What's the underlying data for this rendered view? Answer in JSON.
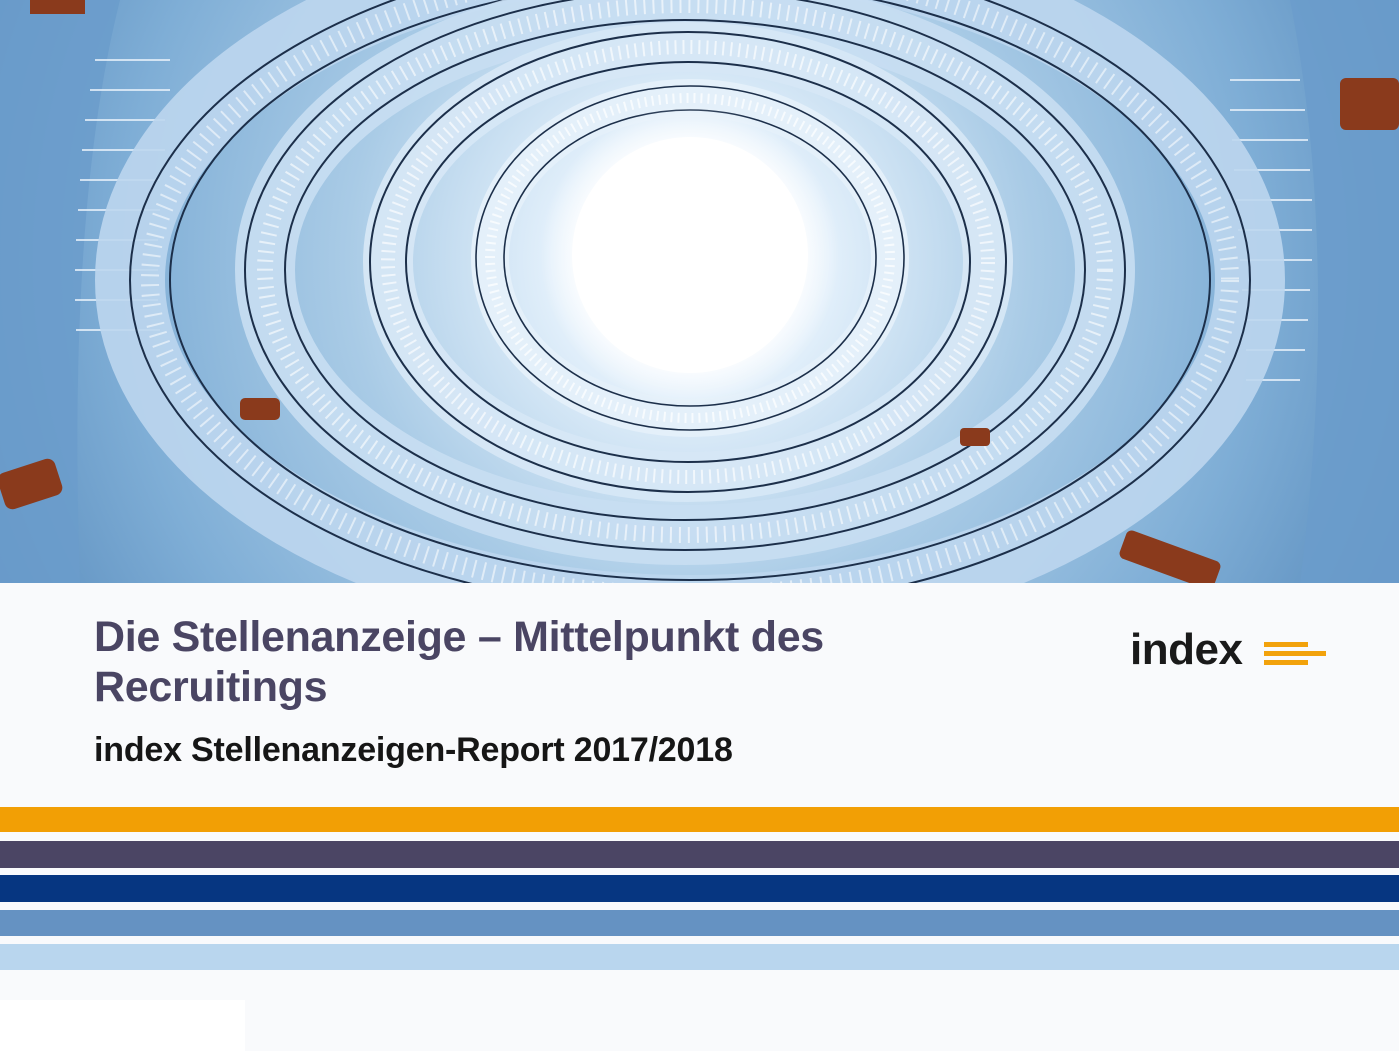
{
  "hero": {
    "image_description_icon": "spiral-staircase-photo"
  },
  "title": {
    "line1": "Die Stellenanzeige – Mittelpunkt des",
    "line2": "Recruitings"
  },
  "subtitle": "index Stellenanzeigen-Report 2017/2018",
  "logo": {
    "text": "index",
    "accent_color": "#f2a20c"
  },
  "stripes": {
    "colors": [
      "#f29f05",
      "#4b4564",
      "#063681",
      "#6592c2",
      "#b9d6ee"
    ]
  },
  "palette": {
    "title_color": "#4a4563",
    "subtitle_color": "#161616",
    "background": "#f9fafc"
  }
}
